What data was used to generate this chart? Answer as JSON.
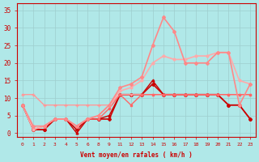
{
  "x_labels": [
    "0",
    "1",
    "2",
    "3",
    "4",
    "5",
    "6",
    "8",
    "9",
    "11",
    "12",
    "13",
    "14",
    "15",
    "16",
    "17",
    "18",
    "19",
    "20",
    "21",
    "22",
    "23"
  ],
  "xlabel": "Vent moyen/en rafales ( km/h )",
  "ylim": [
    -1,
    37
  ],
  "yticks": [
    0,
    5,
    10,
    15,
    20,
    25,
    30,
    35
  ],
  "bg_color": "#b0e8e8",
  "text_color": "#cc0000",
  "lines": [
    {
      "y": [
        8,
        1,
        1,
        4,
        4,
        1,
        4,
        4,
        4,
        11,
        11,
        11,
        14,
        11,
        11,
        11,
        11,
        11,
        11,
        8,
        8,
        4
      ],
      "color": "#cc0000",
      "lw": 1.2,
      "marker": "D",
      "ms": 2.0
    },
    {
      "y": [
        8,
        1,
        1,
        4,
        4,
        0,
        4,
        4,
        5,
        11,
        11,
        11,
        15,
        11,
        11,
        11,
        11,
        11,
        11,
        8,
        8,
        4
      ],
      "color": "#cc0000",
      "lw": 1.0,
      "marker": "^",
      "ms": 2.0
    },
    {
      "y": [
        11,
        11,
        8,
        8,
        8,
        8,
        8,
        8,
        8,
        11,
        11,
        11,
        11,
        11,
        11,
        11,
        11,
        11,
        11,
        11,
        11,
        11
      ],
      "color": "#ff9999",
      "lw": 1.0,
      "marker": "+",
      "ms": 3.0
    },
    {
      "y": [
        8,
        1,
        2,
        4,
        4,
        2,
        4,
        4,
        7,
        11,
        8,
        11,
        11,
        11,
        11,
        11,
        11,
        11,
        11,
        11,
        11,
        11
      ],
      "color": "#ff6666",
      "lw": 1.0,
      "marker": "s",
      "ms": 1.8
    },
    {
      "y": [
        8,
        1,
        2,
        4,
        4,
        2,
        4,
        5,
        8,
        12,
        13,
        15,
        20,
        22,
        21,
        21,
        22,
        22,
        23,
        23,
        15,
        14
      ],
      "color": "#ffaaaa",
      "lw": 1.2,
      "marker": "o",
      "ms": 2.0
    },
    {
      "y": [
        8,
        2,
        2,
        4,
        4,
        2,
        4,
        5,
        8,
        13,
        14,
        16,
        25,
        33,
        29,
        20,
        20,
        20,
        23,
        23,
        8,
        14
      ],
      "color": "#ff8888",
      "lw": 1.2,
      "marker": "D",
      "ms": 2.0
    }
  ]
}
